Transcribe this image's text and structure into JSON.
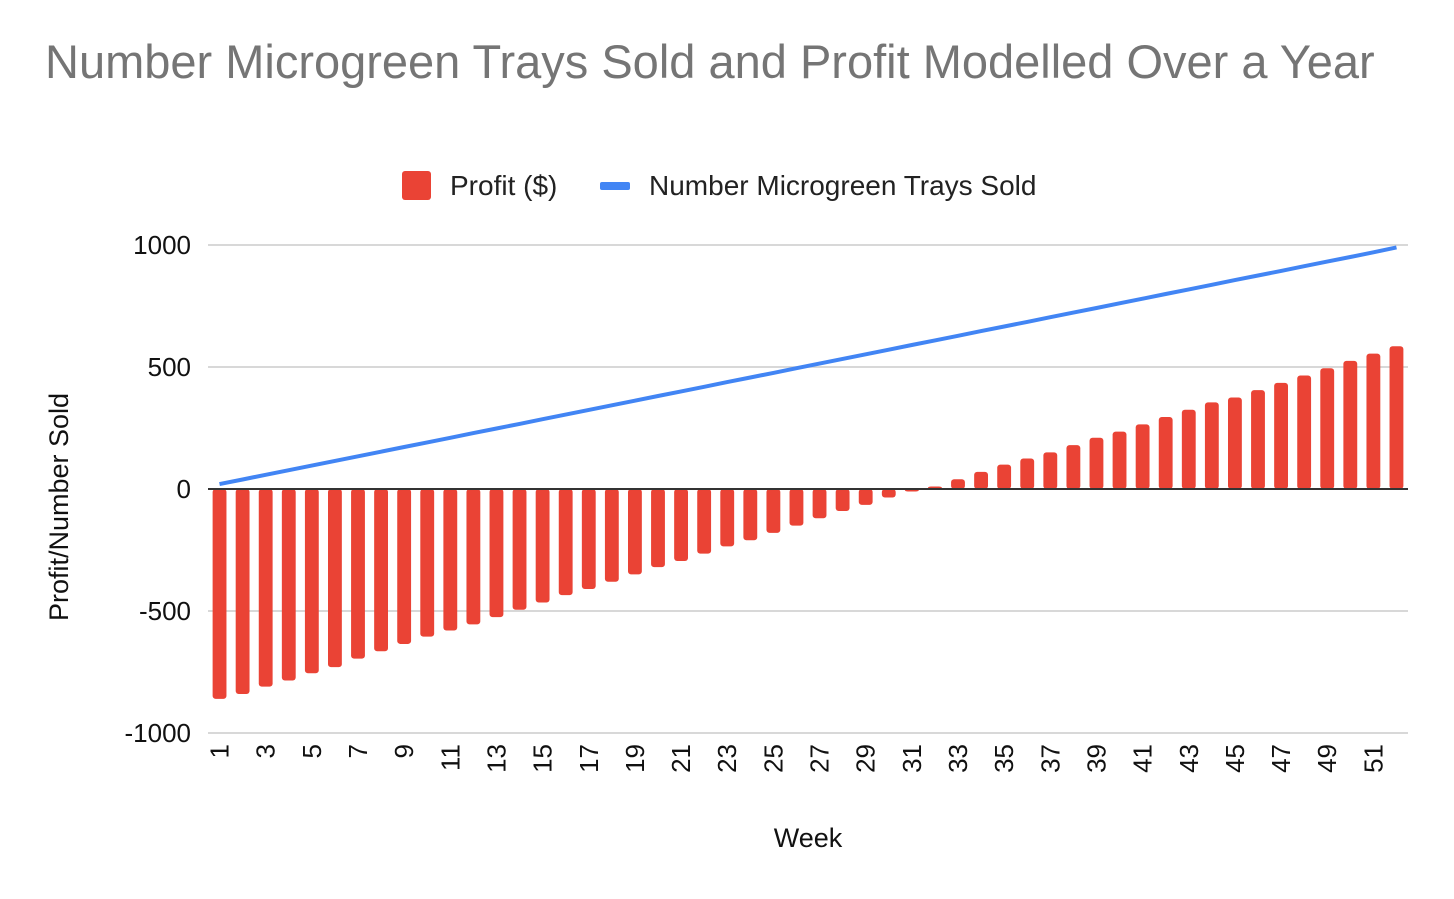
{
  "chart_data": {
    "type": "bar",
    "title": "Number Microgreen Trays Sold and Profit Modelled Over a Year",
    "xlabel": "Week",
    "ylabel": "Profit/Number Sold",
    "ylim": [
      -1000,
      1000
    ],
    "yticks": [
      1000,
      500,
      0,
      -500,
      -1000
    ],
    "grid": true,
    "legend_position": "top",
    "x": [
      1,
      2,
      3,
      4,
      5,
      6,
      7,
      8,
      9,
      10,
      11,
      12,
      13,
      14,
      15,
      16,
      17,
      18,
      19,
      20,
      21,
      22,
      23,
      24,
      25,
      26,
      27,
      28,
      29,
      30,
      31,
      32,
      33,
      34,
      35,
      36,
      37,
      38,
      39,
      40,
      41,
      42,
      43,
      44,
      45,
      46,
      47,
      48,
      49,
      50,
      51,
      52
    ],
    "xtick_labels": [
      "1",
      "3",
      "5",
      "7",
      "9",
      "11",
      "13",
      "15",
      "17",
      "19",
      "21",
      "23",
      "25",
      "27",
      "29",
      "31",
      "33",
      "35",
      "37",
      "39",
      "41",
      "43",
      "45",
      "47",
      "49",
      "51"
    ],
    "series": [
      {
        "name": "Profit ($)",
        "kind": "bar",
        "color": "#EA4335",
        "values": [
          -860,
          -840,
          -810,
          -785,
          -755,
          -730,
          -695,
          -665,
          -635,
          -605,
          -580,
          -555,
          -525,
          -495,
          -465,
          -435,
          -410,
          -380,
          -350,
          -320,
          -295,
          -265,
          -235,
          -210,
          -180,
          -150,
          -120,
          -90,
          -65,
          -35,
          -10,
          10,
          40,
          70,
          100,
          125,
          150,
          180,
          210,
          235,
          265,
          295,
          325,
          355,
          375,
          405,
          435,
          465,
          495,
          525,
          555,
          585
        ]
      },
      {
        "name": "Number Microgreen Trays Sold",
        "kind": "line",
        "color": "#4285F4",
        "values": [
          20,
          39,
          58,
          77,
          96,
          115,
          134,
          153,
          172,
          191,
          210,
          229,
          248,
          267,
          286,
          305,
          324,
          343,
          362,
          381,
          400,
          419,
          438,
          457,
          476,
          495,
          514,
          533,
          552,
          571,
          590,
          609,
          628,
          647,
          666,
          685,
          704,
          723,
          742,
          761,
          780,
          799,
          818,
          837,
          856,
          875,
          894,
          913,
          932,
          951,
          970,
          990
        ]
      }
    ]
  }
}
